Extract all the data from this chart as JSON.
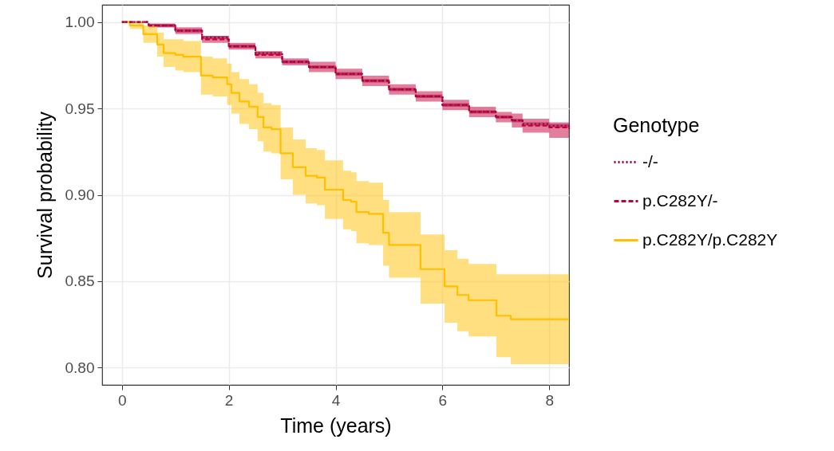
{
  "chart_data": {
    "type": "step",
    "xlabel": "Time (years)",
    "ylabel": "Survival probability",
    "legend_title": "Genotype",
    "legend": "right",
    "grid": true,
    "xlim": [
      -0.37,
      8.37
    ],
    "xticks": [
      0,
      2,
      4,
      6,
      8
    ],
    "ylim": [
      0.79,
      1.01
    ],
    "yticks": [
      {
        "value": 0.8,
        "label": "0.80"
      },
      {
        "value": 0.85,
        "label": "0.85"
      },
      {
        "value": 0.9,
        "label": "0.90"
      },
      {
        "value": 0.95,
        "label": "0.95"
      },
      {
        "value": 1.0,
        "label": "1.00"
      }
    ],
    "series": [
      {
        "name": "-/-",
        "color": "#8b0a45",
        "line_style": "dotted",
        "x": [
          0,
          0.5,
          1,
          1.5,
          2,
          2.5,
          3,
          3.5,
          4,
          4.5,
          5,
          5.5,
          6,
          6.5,
          7,
          7.3,
          7.5,
          8,
          8.37
        ],
        "values": [
          1.0,
          0.998,
          0.995,
          0.991,
          0.986,
          0.982,
          0.977,
          0.974,
          0.97,
          0.966,
          0.961,
          0.957,
          0.952,
          0.948,
          0.945,
          0.943,
          0.941,
          0.94,
          0.939
        ],
        "lower": [
          1.0,
          0.997,
          0.994,
          0.99,
          0.985,
          0.981,
          0.976,
          0.973,
          0.969,
          0.965,
          0.96,
          0.956,
          0.951,
          0.947,
          0.944,
          0.942,
          0.94,
          0.939,
          0.938
        ],
        "upper": [
          1.0,
          0.999,
          0.996,
          0.992,
          0.987,
          0.983,
          0.978,
          0.975,
          0.971,
          0.967,
          0.962,
          0.958,
          0.953,
          0.949,
          0.946,
          0.944,
          0.942,
          0.941,
          0.94
        ]
      },
      {
        "name": "p.C282Y/-",
        "color": "#c8003a",
        "line_style": "dashed",
        "x": [
          0,
          0.5,
          1,
          1.5,
          2,
          2.5,
          3,
          3.5,
          4,
          4.5,
          5,
          5.5,
          6,
          6.5,
          7,
          7.3,
          7.5,
          8,
          8.37
        ],
        "values": [
          1.0,
          0.998,
          0.995,
          0.99,
          0.986,
          0.981,
          0.977,
          0.974,
          0.97,
          0.966,
          0.961,
          0.957,
          0.952,
          0.948,
          0.945,
          0.943,
          0.94,
          0.939,
          0.938
        ],
        "lower": [
          1.0,
          0.997,
          0.993,
          0.988,
          0.984,
          0.979,
          0.975,
          0.971,
          0.967,
          0.963,
          0.958,
          0.954,
          0.949,
          0.945,
          0.942,
          0.939,
          0.936,
          0.933,
          0.932
        ],
        "upper": [
          1.0,
          0.999,
          0.997,
          0.992,
          0.988,
          0.983,
          0.979,
          0.977,
          0.973,
          0.969,
          0.964,
          0.96,
          0.955,
          0.951,
          0.948,
          0.947,
          0.944,
          0.942,
          0.941
        ]
      },
      {
        "name": "p.C282Y/p.C282Y",
        "color": "#ffc000",
        "line_style": "solid",
        "x": [
          0,
          0.15,
          0.4,
          0.66,
          0.78,
          1.0,
          1.15,
          1.48,
          1.7,
          1.97,
          2.05,
          2.2,
          2.38,
          2.54,
          2.65,
          2.8,
          2.97,
          3.2,
          3.44,
          3.65,
          3.8,
          3.95,
          4.14,
          4.29,
          4.39,
          4.62,
          4.89,
          5.0,
          5.26,
          5.59,
          5.78,
          6.04,
          6.28,
          6.49,
          6.88,
          7.01,
          7.28,
          8.37
        ],
        "values": [
          1.0,
          0.998,
          0.993,
          0.987,
          0.982,
          0.981,
          0.98,
          0.969,
          0.968,
          0.964,
          0.959,
          0.954,
          0.951,
          0.945,
          0.939,
          0.938,
          0.924,
          0.916,
          0.911,
          0.91,
          0.903,
          0.903,
          0.897,
          0.896,
          0.89,
          0.889,
          0.878,
          0.871,
          0.871,
          0.857,
          0.857,
          0.847,
          0.842,
          0.839,
          0.839,
          0.83,
          0.828,
          0.828
        ],
        "lower": [
          1.0,
          0.996,
          0.988,
          0.98,
          0.974,
          0.972,
          0.971,
          0.958,
          0.957,
          0.952,
          0.947,
          0.941,
          0.938,
          0.931,
          0.925,
          0.924,
          0.909,
          0.9,
          0.895,
          0.894,
          0.886,
          0.886,
          0.88,
          0.879,
          0.872,
          0.871,
          0.859,
          0.852,
          0.852,
          0.837,
          0.837,
          0.826,
          0.821,
          0.818,
          0.818,
          0.806,
          0.802,
          0.802
        ],
        "upper": [
          1.0,
          1.0,
          0.998,
          0.994,
          0.99,
          0.99,
          0.989,
          0.98,
          0.979,
          0.976,
          0.971,
          0.967,
          0.964,
          0.959,
          0.953,
          0.952,
          0.939,
          0.932,
          0.927,
          0.926,
          0.92,
          0.92,
          0.914,
          0.913,
          0.908,
          0.907,
          0.897,
          0.89,
          0.89,
          0.877,
          0.877,
          0.868,
          0.863,
          0.86,
          0.86,
          0.854,
          0.854,
          0.854
        ]
      }
    ]
  }
}
